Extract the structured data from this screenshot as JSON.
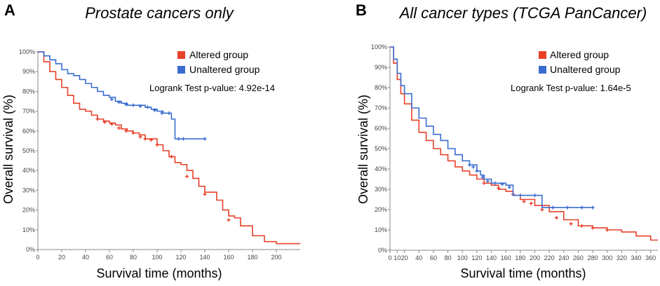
{
  "chart_data": [
    {
      "type": "line",
      "panel": "A",
      "title": "Prostate cancers only",
      "xlabel": "Survival time (months)",
      "ylabel": "Overall survival (%)",
      "xlim": [
        0,
        220
      ],
      "ylim": [
        0,
        100
      ],
      "xticks": [
        0,
        20,
        40,
        60,
        80,
        100,
        120,
        140,
        160,
        180,
        200
      ],
      "yticks": [
        0,
        10,
        20,
        30,
        40,
        50,
        60,
        70,
        80,
        90,
        100
      ],
      "ytick_labels": [
        "0%",
        "10%",
        "20%",
        "30%",
        "40%",
        "50%",
        "60%",
        "70%",
        "80%",
        "90%",
        "100%"
      ],
      "pvalue_text": "Logrank Test p-value: 4.92e-14",
      "series": [
        {
          "name": "Altered group",
          "color": "#e8412a",
          "x": [
            0,
            5,
            10,
            15,
            20,
            25,
            30,
            35,
            40,
            45,
            50,
            55,
            60,
            65,
            70,
            75,
            80,
            85,
            90,
            95,
            100,
            105,
            110,
            115,
            120,
            125,
            130,
            135,
            140,
            145,
            150,
            155,
            160,
            165,
            170,
            180,
            190,
            200,
            220
          ],
          "y": [
            100,
            95,
            90,
            86,
            82,
            78,
            74,
            71,
            70,
            68,
            66,
            65,
            64,
            63,
            61,
            60,
            59,
            58,
            56,
            56,
            53,
            50,
            47,
            44,
            43,
            40,
            36,
            32,
            29,
            29,
            25,
            20,
            17,
            16,
            12,
            7,
            4,
            3,
            3
          ],
          "censor_x": [
            50,
            56,
            62,
            68,
            74,
            80,
            86,
            90,
            95,
            100,
            112,
            125,
            140,
            160
          ],
          "censor_y": [
            66,
            64.5,
            63.5,
            61.5,
            60,
            59,
            57,
            56,
            55.5,
            53,
            47,
            37,
            28,
            15
          ]
        },
        {
          "name": "Unaltered group",
          "color": "#3a6cd0",
          "x": [
            0,
            5,
            10,
            15,
            20,
            25,
            30,
            35,
            40,
            45,
            50,
            55,
            60,
            65,
            70,
            75,
            80,
            85,
            90,
            95,
            100,
            105,
            110,
            112,
            115,
            120,
            130,
            140
          ],
          "y": [
            100,
            98,
            96,
            94,
            91,
            89,
            88,
            86,
            84,
            82,
            80,
            78,
            77,
            75,
            74,
            73,
            73,
            73,
            72,
            71,
            70,
            69,
            69,
            66,
            56,
            56,
            56,
            56
          ],
          "censor_x": [
            62,
            68,
            74,
            80,
            86,
            92,
            98,
            104,
            110,
            118,
            122,
            140
          ],
          "censor_y": [
            76,
            74.5,
            73.5,
            73,
            72.5,
            72,
            70.5,
            69,
            69,
            56,
            56,
            56
          ]
        }
      ]
    },
    {
      "type": "line",
      "panel": "B",
      "title": "All cancer types (TCGA PanCancer)",
      "xlabel": "Survival time (months)",
      "ylabel": "Overall survival (%)",
      "xlim": [
        0,
        370
      ],
      "ylim": [
        0,
        100
      ],
      "xticks": [
        0,
        10,
        20,
        40,
        60,
        80,
        100,
        120,
        140,
        160,
        180,
        200,
        220,
        240,
        260,
        280,
        300,
        320,
        340,
        360
      ],
      "yticks": [
        0,
        10,
        20,
        30,
        40,
        50,
        60,
        70,
        80,
        90,
        100
      ],
      "ytick_labels": [
        "0%",
        "10%",
        "20%",
        "30%",
        "40%",
        "50%",
        "60%",
        "70%",
        "80%",
        "90%",
        "100%"
      ],
      "pvalue_text": "Logrank Test p-value: 1.64e-5",
      "series": [
        {
          "name": "Altered group",
          "color": "#e8412a",
          "x": [
            0,
            5,
            10,
            15,
            20,
            30,
            40,
            50,
            60,
            70,
            80,
            90,
            100,
            110,
            120,
            130,
            140,
            150,
            160,
            170,
            180,
            200,
            220,
            240,
            260,
            280,
            300,
            320,
            340,
            360,
            370
          ],
          "y": [
            100,
            92,
            84,
            77,
            72,
            64,
            58,
            54,
            50,
            47,
            44,
            41,
            39,
            37,
            35,
            33,
            32,
            30,
            29,
            27,
            25,
            22,
            19,
            15,
            12,
            11,
            10,
            9,
            7,
            5,
            5
          ],
          "censor_x": [
            130,
            150,
            170,
            185,
            195,
            210,
            230,
            250,
            265,
            280,
            300
          ],
          "censor_y": [
            33,
            30.5,
            27.5,
            24,
            23,
            20,
            16,
            13,
            12,
            11,
            10
          ]
        },
        {
          "name": "Unaltered group",
          "color": "#3a6cd0",
          "x": [
            0,
            5,
            10,
            15,
            20,
            30,
            40,
            50,
            60,
            70,
            80,
            90,
            100,
            110,
            120,
            125,
            130,
            140,
            150,
            160,
            170,
            190,
            205,
            210,
            240,
            280
          ],
          "y": [
            100,
            94,
            87,
            81,
            77,
            70,
            65,
            61,
            57,
            54,
            50,
            47,
            44,
            42,
            39,
            37,
            35,
            33,
            33,
            32,
            27,
            27,
            27,
            21,
            21,
            21
          ],
          "censor_x": [
            110,
            115,
            120,
            128,
            135,
            145,
            155,
            165,
            180,
            200,
            225,
            245,
            265,
            280
          ],
          "censor_y": [
            42,
            41,
            39,
            36,
            34,
            33,
            32.5,
            31,
            27,
            27,
            21,
            21,
            21,
            21
          ]
        }
      ]
    }
  ]
}
